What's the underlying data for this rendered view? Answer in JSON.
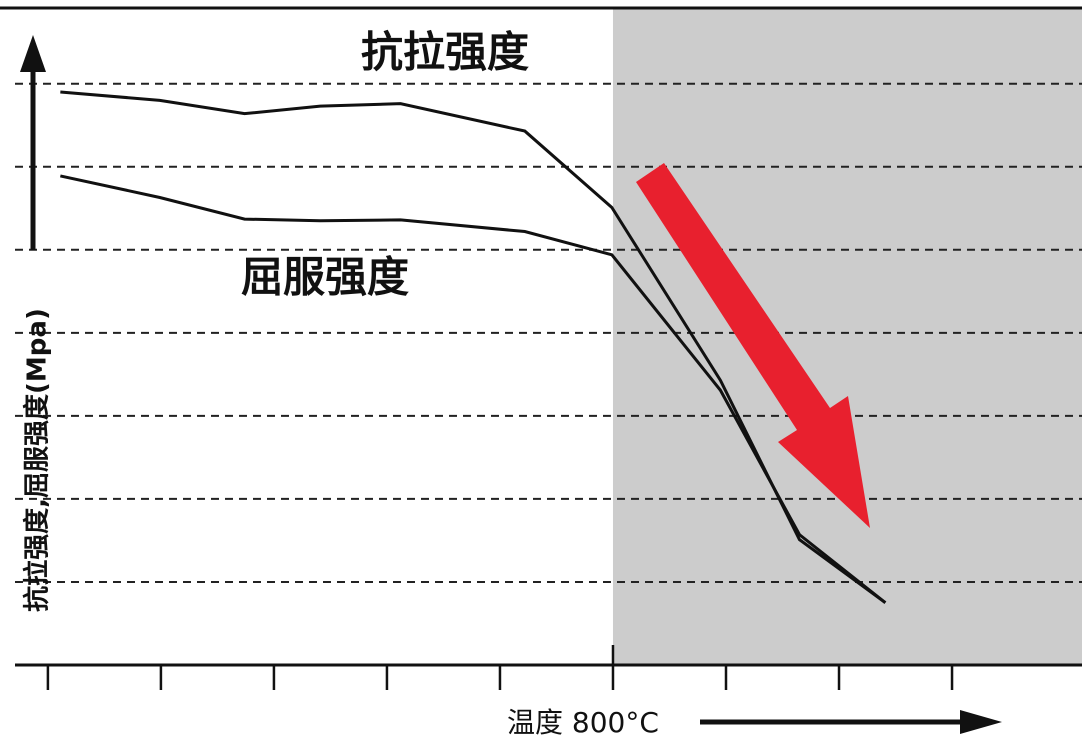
{
  "chart_data": {
    "type": "line",
    "annotations": {
      "tensile": "抗拉强度",
      "yield": "屈服强度"
    },
    "y_label": "抗拉强度,屈服强度(Mpa)",
    "x_label": "温度 800°C",
    "x": [
      0.11,
      0.99,
      1.74,
      2.41,
      3.12,
      4.22,
      4.99,
      5.95,
      6.65,
      7.41
    ],
    "series": [
      {
        "name": "抗拉强度",
        "color": "#111111",
        "values": [
          6.9,
          6.8,
          6.64,
          6.73,
          6.76,
          6.43,
          5.51,
          3.43,
          1.51,
          0.75
        ]
      },
      {
        "name": "屈服强度",
        "color": "#111111",
        "values": [
          5.89,
          5.63,
          5.37,
          5.35,
          5.36,
          5.22,
          4.94,
          3.31,
          1.57,
          0.75
        ]
      }
    ],
    "xlim": [
      -0.3,
      9.15
    ],
    "ylim": [
      0,
      7.9
    ],
    "xticks": [
      0,
      1,
      2,
      3,
      4,
      5,
      6,
      7,
      8
    ],
    "yticks": [
      1,
      2,
      3,
      4,
      5,
      6,
      7
    ],
    "grid": true,
    "shaded_xrange": [
      5,
      9.15
    ],
    "shade_color": "#cccccc",
    "x_label_tick": 5
  }
}
